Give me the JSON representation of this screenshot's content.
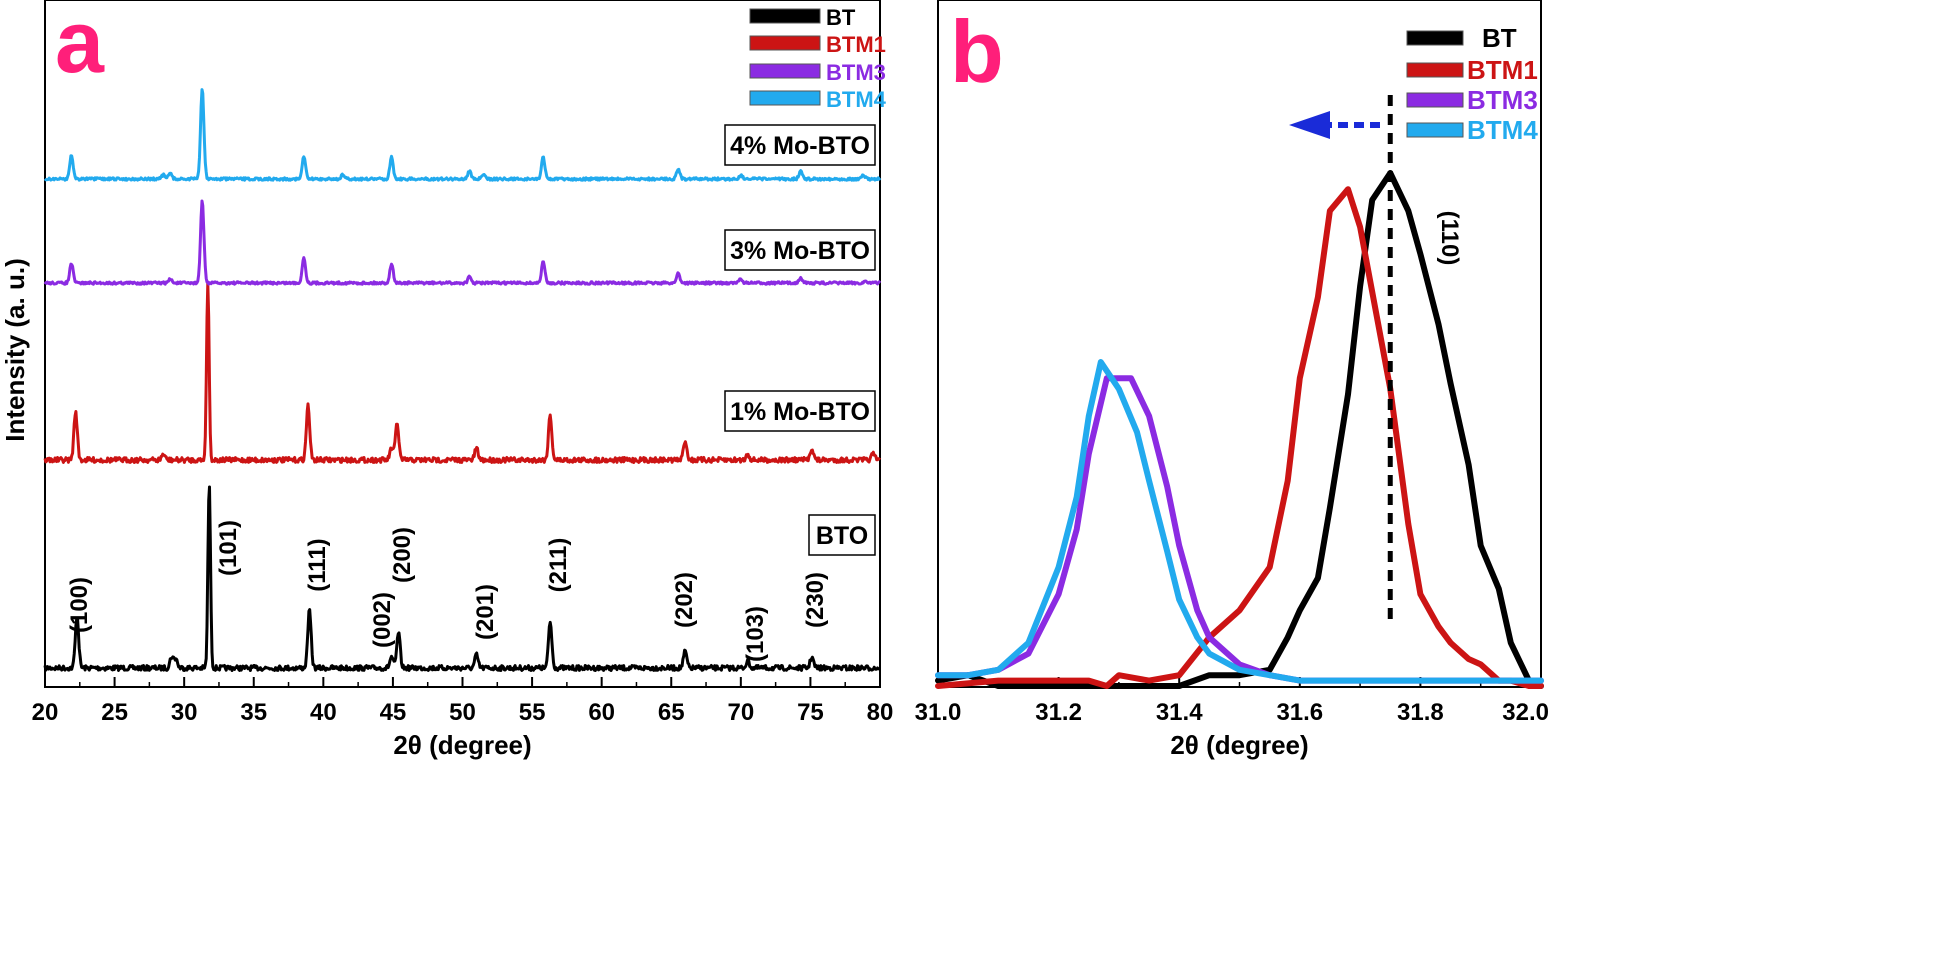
{
  "chart_data": [
    {
      "panel": "a",
      "type": "line",
      "xlabel": "2θ (degree)",
      "ylabel": "Intensity (a. u.)",
      "xlim": [
        20,
        80
      ],
      "xticks": [
        20,
        25,
        30,
        35,
        40,
        45,
        50,
        55,
        60,
        65,
        70,
        75,
        80
      ],
      "legend": [
        "BT",
        "BTM1",
        "BTM3",
        "BTM4"
      ],
      "legend_position": "top-right",
      "sample_labels": [
        "4% Mo-BTO",
        "3% Mo-BTO",
        "1% Mo-BTO",
        "BTO"
      ],
      "peak_labels": [
        {
          "text": "(100)",
          "x": 22.3
        },
        {
          "text": "(101)",
          "x": 31.7
        },
        {
          "text": "(111)",
          "x": 39.0
        },
        {
          "text": "(002)",
          "x": 44.9
        },
        {
          "text": "(200)",
          "x": 45.4
        },
        {
          "text": "(201)",
          "x": 51.0
        },
        {
          "text": "(211)",
          "x": 56.3
        },
        {
          "text": "(202)",
          "x": 66.0
        },
        {
          "text": "(103)",
          "x": 70.5
        },
        {
          "text": "(230)",
          "x": 75.1
        }
      ],
      "series": [
        {
          "name": "BT",
          "label": "BTO",
          "color": "#000000",
          "offset": 0,
          "peaks": [
            [
              22.3,
              28
            ],
            [
              29.1,
              6
            ],
            [
              29.4,
              5
            ],
            [
              31.8,
              100
            ],
            [
              39.0,
              31
            ],
            [
              44.9,
              6
            ],
            [
              45.4,
              19
            ],
            [
              51.0,
              7
            ],
            [
              56.3,
              25
            ],
            [
              66.0,
              9
            ],
            [
              70.5,
              4
            ],
            [
              75.1,
              6
            ]
          ]
        },
        {
          "name": "BTM1",
          "label": "1% Mo-BTO",
          "color": "#cc1414",
          "offset": 1,
          "peaks": [
            [
              22.2,
              25
            ],
            [
              28.5,
              3
            ],
            [
              31.7,
              91
            ],
            [
              38.9,
              28
            ],
            [
              44.9,
              6
            ],
            [
              45.3,
              19
            ],
            [
              51.0,
              6
            ],
            [
              56.3,
              23
            ],
            [
              66.0,
              10
            ],
            [
              70.5,
              3
            ],
            [
              75.1,
              6
            ],
            [
              79.5,
              3
            ]
          ]
        },
        {
          "name": "BTM3",
          "label": "3% Mo-BTO",
          "color": "#8b2be2",
          "offset": 2,
          "peaks": [
            [
              21.9,
              10
            ],
            [
              29.0,
              2
            ],
            [
              31.3,
              42
            ],
            [
              38.6,
              13
            ],
            [
              44.9,
              10
            ],
            [
              50.5,
              3
            ],
            [
              55.8,
              11
            ],
            [
              65.5,
              5
            ],
            [
              70.0,
              2
            ],
            [
              74.3,
              3
            ],
            [
              79.0,
              1
            ]
          ]
        },
        {
          "name": "BTM4",
          "label": "4% Mo-BTO",
          "color": "#22aaee",
          "offset": 3,
          "peaks": [
            [
              21.9,
              12
            ],
            [
              28.5,
              2
            ],
            [
              29.0,
              3
            ],
            [
              31.3,
              45
            ],
            [
              38.6,
              11
            ],
            [
              41.4,
              2
            ],
            [
              44.9,
              11
            ],
            [
              50.5,
              4
            ],
            [
              51.5,
              2
            ],
            [
              55.8,
              11
            ],
            [
              65.5,
              5
            ],
            [
              70.0,
              2
            ],
            [
              74.3,
              4
            ],
            [
              78.8,
              2
            ]
          ]
        }
      ]
    },
    {
      "panel": "b",
      "type": "line",
      "xlabel": "2θ (degree)",
      "xlim": [
        31.0,
        32.0
      ],
      "xticks": [
        31.0,
        31.2,
        31.4,
        31.6,
        31.8,
        32.0
      ],
      "xtick_labels": [
        "31.0",
        "31.2",
        "31.4",
        "31.6",
        "31.8",
        "32.0"
      ],
      "legend": [
        "BT",
        "BTM1",
        "BTM3",
        "BTM4"
      ],
      "legend_position": "top-right",
      "annotation": "(110)",
      "reference_line_x": 31.75,
      "arrow": "shift to lower angle",
      "series": [
        {
          "name": "BT",
          "color": "#000000",
          "x": [
            31.0,
            31.05,
            31.1,
            31.2,
            31.3,
            31.4,
            31.45,
            31.5,
            31.55,
            31.58,
            31.6,
            31.63,
            31.65,
            31.68,
            31.7,
            31.72,
            31.75,
            31.78,
            31.8,
            31.83,
            31.85,
            31.88,
            31.9,
            31.93,
            31.95,
            31.98,
            32.0
          ],
          "y": [
            1,
            2,
            0,
            0,
            0,
            0,
            2,
            2,
            3,
            9,
            14,
            20,
            33,
            54,
            74,
            90,
            95,
            88,
            80,
            67,
            56,
            41,
            26,
            18,
            8,
            1,
            0
          ]
        },
        {
          "name": "BTM1",
          "color": "#cc1414",
          "x": [
            31.0,
            31.1,
            31.2,
            31.25,
            31.28,
            31.3,
            31.35,
            31.4,
            31.45,
            31.5,
            31.55,
            31.58,
            31.6,
            31.63,
            31.65,
            31.68,
            31.7,
            31.72,
            31.75,
            31.78,
            31.8,
            31.83,
            31.85,
            31.88,
            31.9,
            31.93,
            31.95,
            31.98,
            32.0
          ],
          "y": [
            0,
            1,
            1,
            1,
            0,
            2,
            1,
            2,
            9,
            14,
            22,
            38,
            57,
            72,
            88,
            92,
            85,
            73,
            55,
            30,
            17,
            11,
            8,
            5,
            4,
            1,
            1,
            0,
            0
          ]
        },
        {
          "name": "BTM3",
          "color": "#8b2be2",
          "x": [
            31.0,
            31.05,
            31.1,
            31.15,
            31.2,
            31.23,
            31.25,
            31.28,
            31.3,
            31.32,
            31.35,
            31.38,
            31.4,
            31.43,
            31.45,
            31.5,
            31.55,
            31.6,
            31.7,
            31.8,
            31.9,
            32.0
          ],
          "y": [
            2,
            2,
            3,
            6,
            17,
            29,
            43,
            57,
            57,
            57,
            50,
            37,
            26,
            14,
            9,
            4,
            2,
            1,
            1,
            1,
            1,
            1
          ]
        },
        {
          "name": "BTM4",
          "color": "#22aaee",
          "x": [
            31.0,
            31.05,
            31.1,
            31.15,
            31.2,
            31.23,
            31.25,
            31.27,
            31.3,
            31.33,
            31.35,
            31.38,
            31.4,
            31.43,
            31.45,
            31.5,
            31.55,
            31.6,
            31.7,
            31.8,
            31.9,
            32.0
          ],
          "y": [
            2,
            2,
            3,
            8,
            22,
            35,
            50,
            60,
            55,
            47,
            38,
            25,
            16,
            9,
            6,
            3,
            2,
            1,
            1,
            1,
            1,
            1
          ]
        }
      ]
    }
  ]
}
